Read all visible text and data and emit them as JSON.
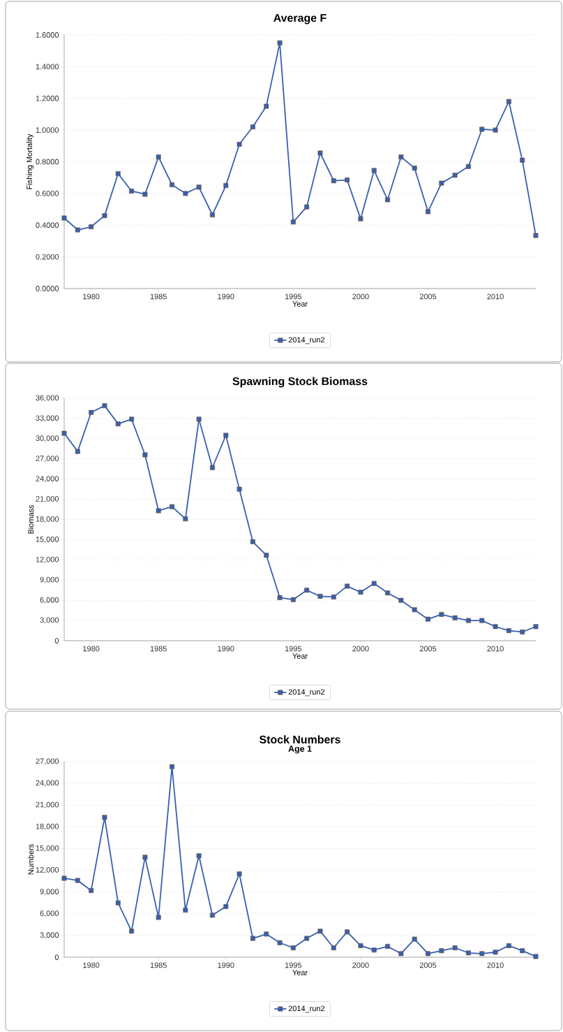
{
  "chart_data": [
    {
      "type": "line",
      "title": "Average F",
      "xlabel": "Year",
      "ylabel": "Fishing Mortality",
      "x": [
        1978,
        1979,
        1980,
        1981,
        1982,
        1983,
        1984,
        1985,
        1986,
        1987,
        1988,
        1989,
        1990,
        1991,
        1992,
        1993,
        1994,
        1995,
        1996,
        1997,
        1998,
        1999,
        2000,
        2001,
        2002,
        2003,
        2004,
        2005,
        2006,
        2007,
        2008,
        2009,
        2010,
        2011,
        2012,
        2013
      ],
      "series": [
        {
          "name": "2014_run2",
          "color": "#3560b0",
          "values": [
            0.445,
            0.37,
            0.39,
            0.46,
            0.725,
            0.615,
            0.595,
            0.83,
            0.655,
            0.6,
            0.64,
            0.465,
            0.65,
            0.91,
            1.02,
            1.15,
            1.55,
            0.42,
            0.515,
            0.855,
            0.68,
            0.685,
            0.44,
            0.745,
            0.56,
            0.83,
            0.76,
            0.485,
            0.665,
            0.715,
            0.77,
            1.005,
            1.0,
            1.18,
            0.81,
            0.335
          ]
        }
      ],
      "xlim": [
        1978,
        2013
      ],
      "xticks": [
        1980,
        1985,
        1990,
        1995,
        2000,
        2005,
        2010
      ],
      "ylim": [
        0,
        1.6
      ],
      "yticks": [
        {
          "value": 0,
          "label": "0.0000"
        },
        {
          "value": 0.2,
          "label": "0.2000"
        },
        {
          "value": 0.4,
          "label": "0.4000"
        },
        {
          "value": 0.6,
          "label": "0.6000"
        },
        {
          "value": 0.8,
          "label": "0.8000"
        },
        {
          "value": 1.0,
          "label": "1.0000"
        },
        {
          "value": 1.2,
          "label": "1.2000"
        },
        {
          "value": 1.4,
          "label": "1.4000"
        },
        {
          "value": 1.6,
          "label": "1.6000"
        }
      ],
      "grid": "y",
      "legend": "bottom",
      "marker": "square"
    },
    {
      "type": "line",
      "title": "Spawning Stock Biomass",
      "xlabel": "Year",
      "ylabel": "Biomass",
      "x": [
        1978,
        1979,
        1980,
        1981,
        1982,
        1983,
        1984,
        1985,
        1986,
        1987,
        1988,
        1989,
        1990,
        1991,
        1992,
        1993,
        1994,
        1995,
        1996,
        1997,
        1998,
        1999,
        2000,
        2001,
        2002,
        2003,
        2004,
        2005,
        2006,
        2007,
        2008,
        2009,
        2010,
        2011,
        2012,
        2013
      ],
      "series": [
        {
          "name": "2014_run2",
          "color": "#3560b0",
          "values": [
            30800,
            28100,
            33900,
            34900,
            32200,
            32900,
            27600,
            19300,
            19900,
            18100,
            32900,
            25700,
            30500,
            22500,
            14700,
            12700,
            6400,
            6100,
            7500,
            6600,
            6500,
            8100,
            7200,
            8500,
            7100,
            6000,
            4600,
            3200,
            3900,
            3400,
            3000,
            3000,
            2100,
            1500,
            1300,
            2100
          ]
        }
      ],
      "xlim": [
        1978,
        2013
      ],
      "xticks": [
        1980,
        1985,
        1990,
        1995,
        2000,
        2005,
        2010
      ],
      "ylim": [
        0,
        36000
      ],
      "yticks": [
        0,
        {
          "value": 3000,
          "label": "3,000"
        },
        {
          "value": 6000,
          "label": "6,000"
        },
        {
          "value": 9000,
          "label": "9,000"
        },
        {
          "value": 12000,
          "label": "12,000"
        },
        {
          "value": 15000,
          "label": "15,000"
        },
        {
          "value": 18000,
          "label": "18,000"
        },
        {
          "value": 21000,
          "label": "21,000"
        },
        {
          "value": 24000,
          "label": "24,000"
        },
        {
          "value": 27000,
          "label": "27,000"
        },
        {
          "value": 30000,
          "label": "30,000"
        },
        {
          "value": 33000,
          "label": "33,000"
        },
        {
          "value": 36000,
          "label": "36,000"
        }
      ],
      "grid": "y",
      "legend": "bottom",
      "marker": "square"
    },
    {
      "type": "line",
      "title": "Stock Numbers",
      "subtitle": "Age 1",
      "xlabel": "Year",
      "ylabel": "Numbers",
      "x": [
        1978,
        1979,
        1980,
        1981,
        1982,
        1983,
        1984,
        1985,
        1986,
        1987,
        1988,
        1989,
        1990,
        1991,
        1992,
        1993,
        1994,
        1995,
        1996,
        1997,
        1998,
        1999,
        2000,
        2001,
        2002,
        2003,
        2004,
        2005,
        2006,
        2007,
        2008,
        2009,
        2010,
        2011,
        2012,
        2013
      ],
      "series": [
        {
          "name": "2014_run2",
          "color": "#3560b0",
          "values": [
            10900,
            10600,
            9200,
            19300,
            7500,
            3600,
            13800,
            5500,
            26300,
            6500,
            14000,
            5800,
            7000,
            11500,
            2600,
            3200,
            2000,
            1300,
            2600,
            3600,
            1300,
            3500,
            1600,
            1000,
            1500,
            500,
            2500,
            500,
            900,
            1300,
            600,
            500,
            700,
            1600,
            900,
            100
          ]
        }
      ],
      "xlim": [
        1978,
        2013
      ],
      "xticks": [
        1980,
        1985,
        1990,
        1995,
        2000,
        2005,
        2010
      ],
      "ylim": [
        0,
        27000
      ],
      "yticks": [
        0,
        {
          "value": 3000,
          "label": "3,000"
        },
        {
          "value": 6000,
          "label": "6,000"
        },
        {
          "value": 9000,
          "label": "9,000"
        },
        {
          "value": 12000,
          "label": "12,000"
        },
        {
          "value": 15000,
          "label": "15,000"
        },
        {
          "value": 18000,
          "label": "18,000"
        },
        {
          "value": 21000,
          "label": "21,000"
        },
        {
          "value": 24000,
          "label": "24,000"
        },
        {
          "value": 27000,
          "label": "27,000"
        }
      ],
      "grid": "y",
      "legend": "bottom",
      "marker": "square"
    }
  ]
}
